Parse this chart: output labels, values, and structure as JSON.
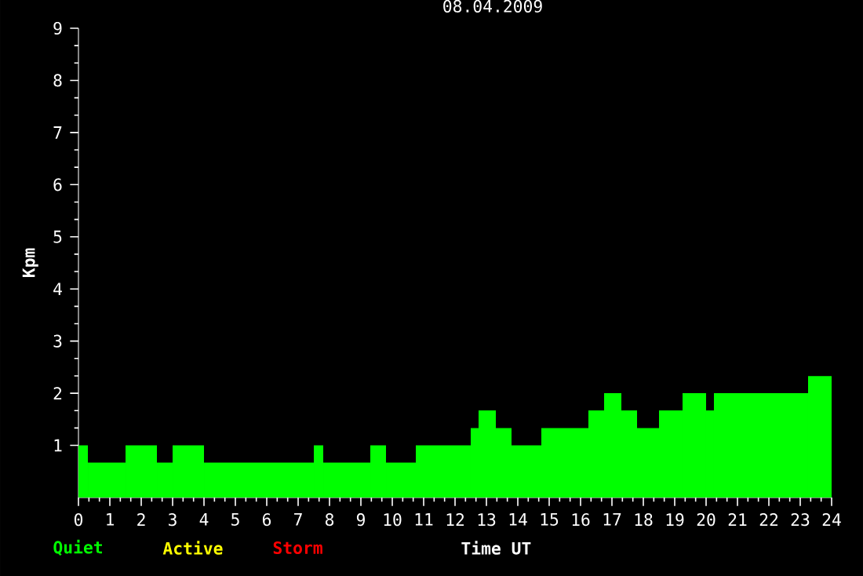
{
  "chart_data": {
    "type": "histogram",
    "title": "08.04.2009",
    "xlabel": "Time UT",
    "ylabel": "Kpm",
    "bins": [
      0,
      0.3,
      1.5,
      2.5,
      3,
      4,
      7.5,
      7.8,
      9.3,
      9.8,
      10.75,
      12.5,
      12.75,
      13.3,
      13.8,
      14.75,
      16.25,
      16.75,
      17.3,
      17.8,
      18.5,
      19.25,
      20,
      20.25,
      23.25,
      24
    ],
    "values": [
      1,
      0.67,
      1,
      0.67,
      1,
      0.67,
      1,
      0.67,
      1,
      0.67,
      1,
      1.33,
      1.67,
      1.33,
      1,
      1.33,
      1.67,
      2,
      1.67,
      1.33,
      1.67,
      2,
      1.67,
      2,
      2.33
    ],
    "color": "#00ff00",
    "xlim": [
      0,
      24
    ],
    "ylim": [
      0,
      9
    ],
    "xticks": [
      0,
      1,
      2,
      3,
      4,
      5,
      6,
      7,
      8,
      9,
      10,
      11,
      12,
      13,
      14,
      15,
      16,
      17,
      18,
      19,
      20,
      21,
      22,
      23,
      24
    ],
    "yticks": [
      1,
      2,
      3,
      4,
      5,
      6,
      7,
      8,
      9
    ],
    "annotations": [
      "Quiet",
      "Active",
      "Storm"
    ],
    "grid": false
  }
}
